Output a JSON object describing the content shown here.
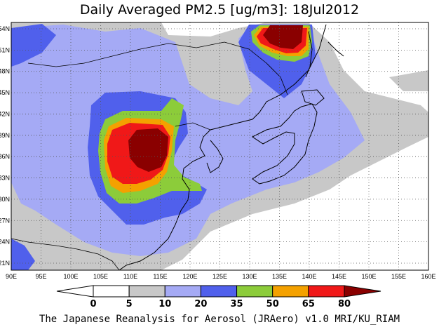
{
  "title": "Daily Averaged PM2.5 [ug/m3]: 18Jul2012",
  "credit": "The Japanese Reanalysis for Aerosol (JRAero) v1.0 MRI/KU_RIAM",
  "map": {
    "lon_labels": [
      "90E",
      "95E",
      "100E",
      "105E",
      "110E",
      "115E",
      "120E",
      "125E",
      "130E",
      "135E",
      "140E",
      "145E",
      "150E",
      "155E",
      "160E"
    ],
    "lat_labels": [
      "54N",
      "51N",
      "48N",
      "45N",
      "42N",
      "39N",
      "36N",
      "33N",
      "30N",
      "27N",
      "24N",
      "21N"
    ]
  },
  "legend": {
    "levels": [
      "0",
      "5",
      "10",
      "20",
      "35",
      "50",
      "65",
      "80"
    ],
    "colors": {
      "below_0": "#ffffff",
      "b0_5": "#ffffff",
      "b5_10": "#c8c8c8",
      "b10_20": "#a5aaf5",
      "b20_35": "#5060ec",
      "b35_50": "#8ccc3a",
      "b50_65": "#f4a100",
      "b65_80": "#f01818",
      "above_80": "#8a0000"
    }
  }
}
